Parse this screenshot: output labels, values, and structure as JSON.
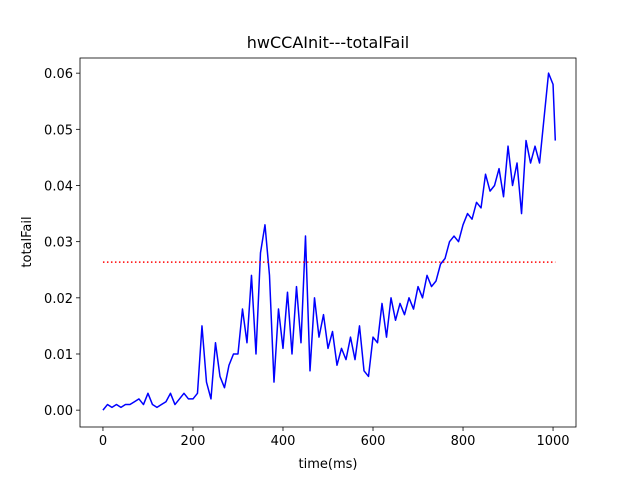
{
  "chart_data": {
    "type": "line",
    "title": "hwCCAInit---totalFail",
    "xlabel": "time(ms)",
    "ylabel": "totalFail",
    "xlim": [
      -51,
      1051
    ],
    "ylim": [
      -0.003,
      0.0627
    ],
    "xticks": [
      0,
      200,
      400,
      600,
      800,
      1000
    ],
    "yticks": [
      {
        "value": 0,
        "label": "0.00"
      },
      {
        "value": 0.01,
        "label": "0.01"
      },
      {
        "value": 0.02,
        "label": "0.02"
      },
      {
        "value": 0.03,
        "label": "0.03"
      },
      {
        "value": 0.04,
        "label": "0.04"
      },
      {
        "value": 0.05,
        "label": "0.05"
      },
      {
        "value": 0.06,
        "label": "0.06"
      }
    ],
    "series": [
      {
        "color": "#0000ff",
        "style": "solid",
        "x": [
          0,
          10,
          20,
          30,
          40,
          50,
          60,
          70,
          80,
          90,
          100,
          110,
          120,
          130,
          140,
          150,
          160,
          170,
          180,
          190,
          200,
          210,
          220,
          230,
          240,
          250,
          260,
          270,
          280,
          290,
          300,
          310,
          320,
          330,
          340,
          350,
          360,
          370,
          380,
          390,
          400,
          410,
          420,
          430,
          440,
          450,
          460,
          470,
          480,
          490,
          500,
          510,
          520,
          530,
          540,
          550,
          560,
          570,
          580,
          590,
          600,
          610,
          620,
          630,
          640,
          650,
          660,
          670,
          680,
          690,
          700,
          710,
          720,
          730,
          740,
          750,
          760,
          770,
          780,
          790,
          800,
          810,
          820,
          830,
          840,
          850,
          860,
          870,
          880,
          890,
          900,
          910,
          920,
          930,
          940,
          950,
          960,
          970,
          980,
          990,
          1000,
          1005
        ],
        "values": [
          0.0,
          0.001,
          0.0005,
          0.001,
          0.0005,
          0.001,
          0.001,
          0.0015,
          0.002,
          0.001,
          0.003,
          0.001,
          0.0005,
          0.001,
          0.0015,
          0.003,
          0.001,
          0.002,
          0.003,
          0.002,
          0.002,
          0.003,
          0.015,
          0.005,
          0.002,
          0.012,
          0.006,
          0.004,
          0.008,
          0.01,
          0.01,
          0.018,
          0.012,
          0.024,
          0.01,
          0.028,
          0.033,
          0.024,
          0.005,
          0.018,
          0.011,
          0.021,
          0.01,
          0.022,
          0.012,
          0.031,
          0.007,
          0.02,
          0.013,
          0.017,
          0.011,
          0.014,
          0.008,
          0.011,
          0.009,
          0.013,
          0.009,
          0.015,
          0.007,
          0.006,
          0.013,
          0.012,
          0.019,
          0.013,
          0.02,
          0.016,
          0.019,
          0.017,
          0.02,
          0.018,
          0.022,
          0.02,
          0.024,
          0.022,
          0.023,
          0.026,
          0.027,
          0.03,
          0.031,
          0.03,
          0.033,
          0.035,
          0.034,
          0.037,
          0.036,
          0.042,
          0.039,
          0.04,
          0.043,
          0.038,
          0.047,
          0.04,
          0.044,
          0.035,
          0.048,
          0.044,
          0.047,
          0.044,
          0.052,
          0.06,
          0.058,
          0.048
        ]
      },
      {
        "color": "#ff0000",
        "style": "dotted",
        "x": [
          0,
          1005
        ],
        "values": [
          0.02635,
          0.02635
        ]
      }
    ]
  }
}
